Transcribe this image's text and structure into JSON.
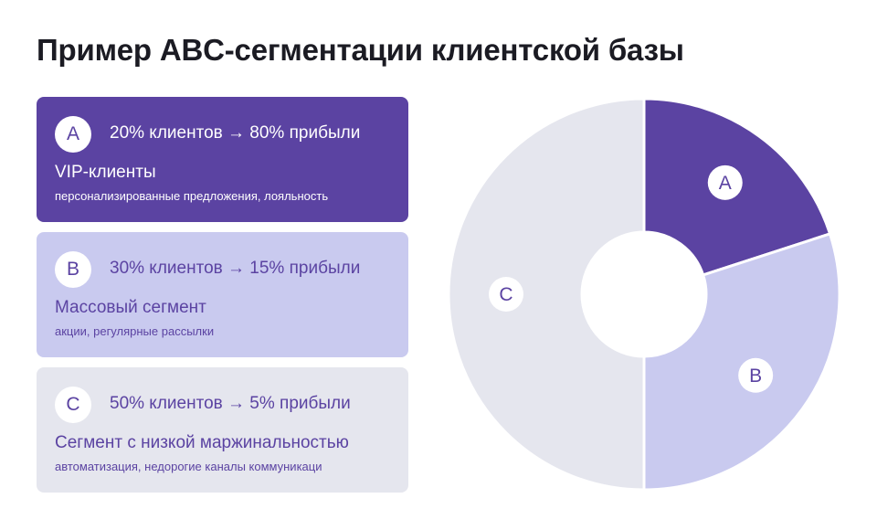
{
  "title": "Пример ABC-сегментации клиентской базы",
  "colors": {
    "segment_a": "#5b43a2",
    "segment_b": "#c9caef",
    "segment_c": "#e5e6ee",
    "title_text": "#1b1b23"
  },
  "segments": [
    {
      "letter": "A",
      "stat": "20% клиентов → 80% прибыли",
      "name": "VIP-клиенты",
      "description": "персонализированные предложения, лояльность"
    },
    {
      "letter": "B",
      "stat": "30% клиентов → 15% прибыли",
      "name": "Массовый сегмент",
      "description": "акции, регулярные рассылки"
    },
    {
      "letter": "C",
      "stat": "50% клиентов → 5% прибыли",
      "name": "Сегмент с низкой маржинальностью",
      "description": "автоматизация, недорогие каналы коммуникаци"
    }
  ],
  "chart_data": {
    "type": "pie",
    "donut": true,
    "categories": [
      "A",
      "B",
      "C"
    ],
    "values": [
      20,
      30,
      50
    ],
    "colors": [
      "#5b43a2",
      "#c9caef",
      "#e5e6ee"
    ],
    "title": ""
  }
}
